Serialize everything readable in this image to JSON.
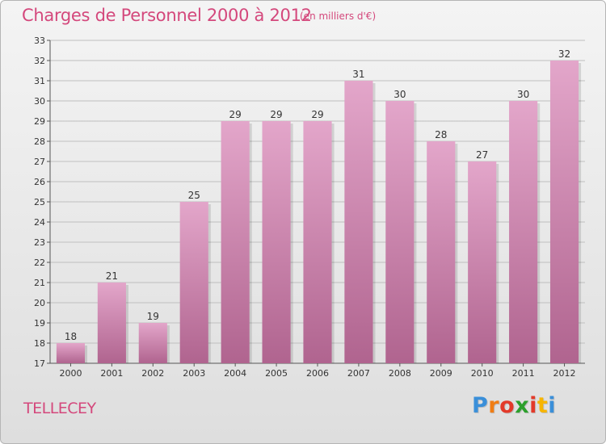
{
  "header": {
    "title": "Charges de Personnel 2000 à 2012",
    "subtitle": "(en milliers d'€)"
  },
  "footer": {
    "place": "TELLECEY",
    "logo_letters": [
      "P",
      "r",
      "o",
      "x",
      "i",
      "t",
      "i"
    ]
  },
  "colors": {
    "title": "#d4487c",
    "bar_top": "#e3a6ca",
    "bar_bottom": "#b0648f",
    "grid": "#bfbfbf"
  },
  "chart_data": {
    "type": "bar",
    "title": "Charges de Personnel 2000 à 2012",
    "subtitle": "(en milliers d'€)",
    "categories": [
      "2000",
      "2001",
      "2002",
      "2003",
      "2004",
      "2005",
      "2006",
      "2007",
      "2008",
      "2009",
      "2010",
      "2011",
      "2012"
    ],
    "values": [
      18,
      21,
      19,
      25,
      29,
      29,
      29,
      31,
      30,
      28,
      27,
      30,
      32
    ],
    "ylim": [
      17,
      33
    ],
    "yticks": [
      17,
      18,
      19,
      20,
      21,
      22,
      23,
      24,
      25,
      26,
      27,
      28,
      29,
      30,
      31,
      32,
      33
    ],
    "grid": true,
    "data_labels": true
  }
}
